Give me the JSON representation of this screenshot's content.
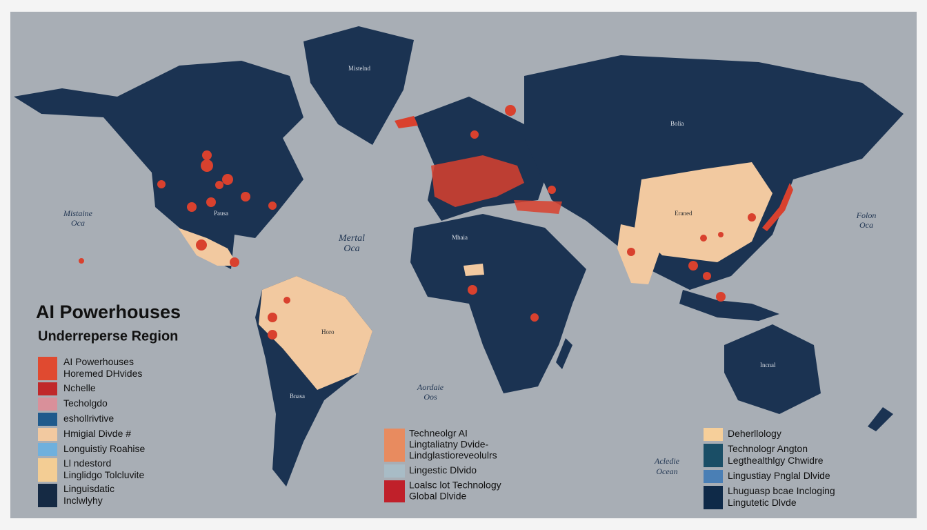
{
  "title": "AI Powerhouses",
  "subtitle": "Underreperse Region",
  "map_labels": {
    "greenland": "Mistelnd",
    "russia": "Bolia",
    "north_america": "Pausa",
    "china": "Eraned",
    "brazil": "Horo",
    "argentina": "Bnasa",
    "australia": "Incnal",
    "africa": "Mhaia",
    "pacific_west": [
      "Mistaine",
      "Oca"
    ],
    "atlantic_north": [
      "Mertal",
      "Oca"
    ],
    "pacific_east": [
      "Folon",
      "Oca"
    ],
    "atlantic_south": [
      "Aordaie",
      "Oos"
    ],
    "indian": [
      "Acledie",
      "Ocean"
    ]
  },
  "legend_left": [
    {
      "color": "#e04a30",
      "labels": [
        "AI Powerhouses",
        "Horemed DHvides"
      ]
    },
    {
      "color": "#c0282a",
      "labels": [
        "Nchelle"
      ]
    },
    {
      "color": "#d9909a",
      "labels": [
        "Techolgdo"
      ]
    },
    {
      "color": "#1f5a8c",
      "labels": [
        "eshollrivtive"
      ]
    },
    {
      "color": "#f2c9a0",
      "labels": [
        "Hmigial Divde #"
      ]
    },
    {
      "color": "#6fb0dd",
      "labels": [
        "Longuistiy Roahise"
      ]
    },
    {
      "color": "#f3cd94",
      "labels": [
        "Ll ndestord",
        "Linglidgo Tolcluvite"
      ]
    },
    {
      "color": "#152a44",
      "labels": [
        "Linguisdatic",
        "Inclwlyhy"
      ]
    }
  ],
  "legend_middle": [
    {
      "color": "#e88b5f",
      "labels": [
        "Techneolgr AI",
        "Lingtaliatny Dvide-",
        "Lindglastioreveolulrs"
      ]
    },
    {
      "color": "#a8bcc6",
      "labels": [
        "Lingestic Dlvido"
      ]
    },
    {
      "color": "#c0202a",
      "labels": [
        "Loalsc lot Technology",
        "Global Dlvide"
      ]
    }
  ],
  "legend_right": [
    {
      "color": "#f6cf9a",
      "labels": [
        "Deherllology"
      ]
    },
    {
      "color": "#1a4e66",
      "labels": [
        "Technologr Angton",
        "Legthealthlgy Chwidre"
      ]
    },
    {
      "color": "#4a7fb5",
      "labels": [
        "Lingustiay Pnglal Dlvide"
      ]
    },
    {
      "color": "#0f2a48",
      "labels": [
        "Lhuguasp bcae Incloging",
        "Lingutetic Dlvde"
      ]
    }
  ]
}
